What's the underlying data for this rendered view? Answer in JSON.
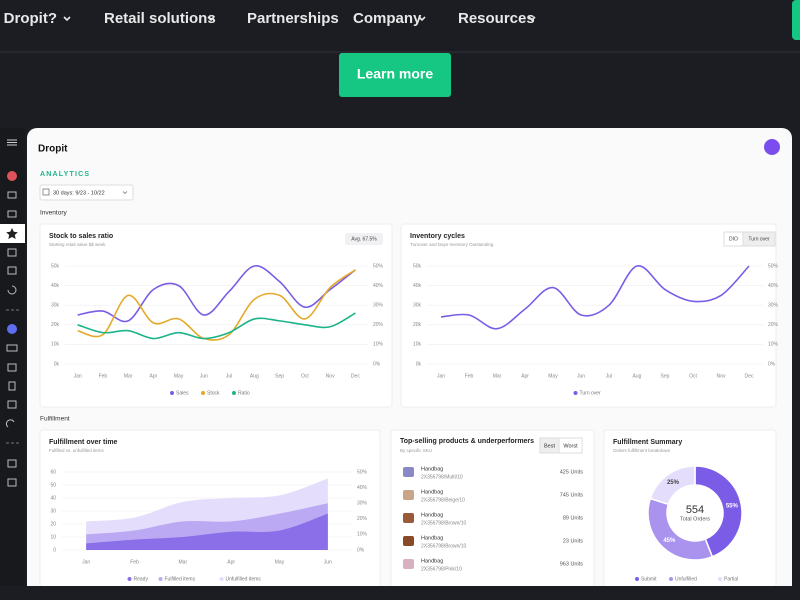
{
  "nav": {
    "items": [
      "Why Dropit?",
      "Retail solutions",
      "Partnerships",
      "Company",
      "Resources"
    ]
  },
  "cta": "Learn more",
  "dashboard": {
    "logo": "Dropit",
    "section": "ANALYTICS",
    "date_range": "30 days: 9/23 - 10/22",
    "inventory_heading": "Inventory",
    "fulfillment_heading": "Fulfillment"
  },
  "products": {
    "title": "Top-selling products & underperformers",
    "subtitle": "By specific SKU",
    "buttons": [
      "Best",
      "Worst"
    ],
    "rows": [
      {
        "name": "Handbag",
        "sku": "2X356798/Multi/10",
        "units": "425 Units"
      },
      {
        "name": "Handbag",
        "sku": "2X356798/Beige/10",
        "units": "745 Units"
      },
      {
        "name": "Handbag",
        "sku": "2X356798/Brown/10",
        "units": "89 Units"
      },
      {
        "name": "Handbag",
        "sku": "2X356798/Brown/10",
        "units": "23 Units"
      },
      {
        "name": "Handbag",
        "sku": "2X356798/Pink/10",
        "units": "963 Units"
      }
    ]
  },
  "chart_data": [
    {
      "type": "line",
      "title": "Stock to sales ratio",
      "subtitle": "Starting retail value $$ week",
      "badge": "Avg. 67.5%",
      "categories": [
        "Jan",
        "Feb",
        "Mar",
        "Apr",
        "May",
        "Jun",
        "Jul",
        "Aug",
        "Sep",
        "Oct",
        "Nov",
        "Dec"
      ],
      "series": [
        {
          "name": "Sales",
          "color": "#7b5ce6",
          "values": [
            25000,
            27000,
            22000,
            38000,
            40000,
            25000,
            37000,
            50000,
            42000,
            29000,
            38000,
            48000
          ]
        },
        {
          "name": "Stock",
          "color": "#e5a928",
          "values": [
            17000,
            15000,
            35000,
            21000,
            23000,
            13000,
            15000,
            33000,
            35000,
            23000,
            39000,
            48000
          ]
        },
        {
          "name": "Ratio",
          "color": "#1db48a",
          "axis": "y2",
          "values": [
            20,
            16,
            17,
            13,
            16,
            13,
            16,
            23,
            22,
            20,
            19,
            26
          ]
        }
      ],
      "ylim": [
        0,
        50000
      ],
      "yticks": [
        {
          "value": 0,
          "label": "0k"
        },
        {
          "value": 10000,
          "label": "10k"
        },
        {
          "value": 20000,
          "label": "20k"
        },
        {
          "value": 30000,
          "label": "30k"
        },
        {
          "value": 40000,
          "label": "40k"
        },
        {
          "value": 50000,
          "label": "50k"
        }
      ],
      "y2lim": [
        0,
        50
      ],
      "y2ticks": [
        {
          "value": 0,
          "label": "0%"
        },
        {
          "value": 10,
          "label": "10%"
        },
        {
          "value": 20,
          "label": "20%"
        },
        {
          "value": 30,
          "label": "30%"
        },
        {
          "value": 40,
          "label": "40%"
        },
        {
          "value": 50,
          "label": "50%"
        }
      ],
      "grid": true
    },
    {
      "type": "line",
      "title": "Inventory cycles",
      "subtitle": "Turnover and Days Inventory Outstanding",
      "buttons": [
        "DIO",
        "Turn over"
      ],
      "categories": [
        "Jan",
        "Feb",
        "Mar",
        "Apr",
        "May",
        "Jun",
        "Jul",
        "Aug",
        "Sep",
        "Oct",
        "Nov",
        "Dec"
      ],
      "series": [
        {
          "name": "Turn over",
          "color": "#7b5ce6",
          "values": [
            24000,
            25000,
            18000,
            28000,
            39000,
            25000,
            30000,
            50000,
            38000,
            32000,
            35000,
            50000
          ]
        }
      ],
      "ylim": [
        0,
        50000
      ],
      "yticks": [
        {
          "value": 0,
          "label": "0k"
        },
        {
          "value": 10000,
          "label": "10k"
        },
        {
          "value": 20000,
          "label": "20k"
        },
        {
          "value": 30000,
          "label": "30k"
        },
        {
          "value": 40000,
          "label": "40k"
        },
        {
          "value": 50000,
          "label": "50k"
        }
      ],
      "y2lim": [
        0,
        50
      ],
      "y2ticks": [
        {
          "value": 0,
          "label": "0%"
        },
        {
          "value": 10,
          "label": "10%"
        },
        {
          "value": 20,
          "label": "20%"
        },
        {
          "value": 30,
          "label": "30%"
        },
        {
          "value": 40,
          "label": "40%"
        },
        {
          "value": 50,
          "label": "50%"
        }
      ],
      "grid": true
    },
    {
      "type": "area",
      "title": "Fulfillment over time",
      "subtitle": "Fulfilled vs. unfulfilled items",
      "categories": [
        "Jan",
        "Feb",
        "Mar",
        "Apr",
        "May",
        "Jun"
      ],
      "series": [
        {
          "name": "Ready",
          "color": "#8a6fe8",
          "values": [
            5,
            8,
            10,
            14,
            15,
            28
          ]
        },
        {
          "name": "Fulfilled items",
          "color": "#bba9f3",
          "values": [
            12,
            15,
            22,
            22,
            28,
            36
          ]
        },
        {
          "name": "Unfulfilled items",
          "color": "#e4ddfb",
          "values": [
            22,
            25,
            37,
            40,
            42,
            55
          ]
        }
      ],
      "ylim": [
        0,
        60
      ],
      "yticks": [
        0,
        10,
        20,
        30,
        40,
        50,
        60
      ],
      "y2lim": [
        0,
        50
      ],
      "y2ticks": [
        {
          "value": 0,
          "label": "0%"
        },
        {
          "value": 10,
          "label": "10%"
        },
        {
          "value": 20,
          "label": "20%"
        },
        {
          "value": 30,
          "label": "30%"
        },
        {
          "value": 40,
          "label": "40%"
        },
        {
          "value": 50,
          "label": "50%"
        }
      ],
      "grid": true
    },
    {
      "type": "pie",
      "title": "Fulfillment Summary",
      "subtitle": "Orders fulfillment breakdown",
      "total": "554",
      "total_label": "Total Orders",
      "categories": [
        "Submit",
        "Unfulfilled",
        "Partial"
      ],
      "values": [
        55,
        45,
        25
      ],
      "value_labels": [
        "55%",
        "45%",
        "25%"
      ],
      "colors": [
        "#7b5ce6",
        "#a993ef",
        "#e4ddfb"
      ]
    }
  ]
}
